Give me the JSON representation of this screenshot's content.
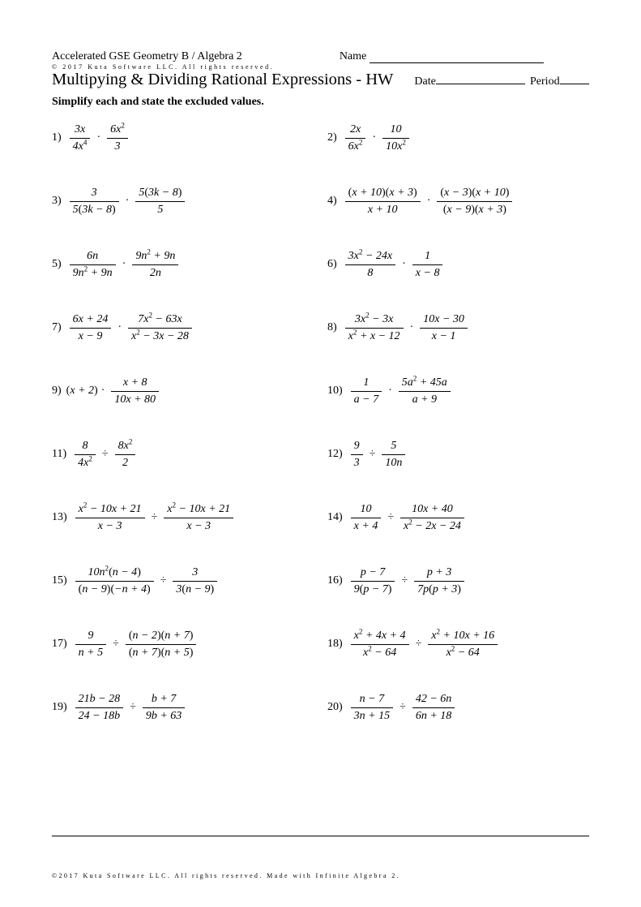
{
  "header": {
    "course": "Accelerated GSE Geometry B / Algebra 2",
    "name_label": "Name",
    "copyright_top": "© 2017 Kuta Software LLC. All rights reserved.",
    "title": "Multipying & Dividing Rational Expressions - HW",
    "date_label": "Date",
    "period_label": "Period"
  },
  "instruction": "Simplify each and state the excluded values.",
  "problems": [
    {
      "n": "1)",
      "col": "left",
      "frac1": {
        "num": "3<i>x</i>",
        "den": "4<i>x</i><sup>4</sup>"
      },
      "op": "·",
      "frac2": {
        "num": "6<i>x</i><sup>2</sup>",
        "den": "3"
      }
    },
    {
      "n": "2)",
      "col": "right",
      "frac1": {
        "num": "2<i>x</i>",
        "den": "6<i>x</i><sup>2</sup>"
      },
      "op": "·",
      "frac2": {
        "num": "10",
        "den": "10<i>x</i><sup>2</sup>"
      }
    },
    {
      "n": "3)",
      "col": "left",
      "frac1": {
        "num": "3",
        "den": "5<span class='rm'>(</span>3<i>k</i> − 8<span class='rm'>)</span>"
      },
      "op": "·",
      "frac2": {
        "num": "5<span class='rm'>(</span>3<i>k</i> − 8<span class='rm'>)</span>",
        "den": "5"
      }
    },
    {
      "n": "4)",
      "col": "right",
      "frac1": {
        "num": "<span class='rm'>(</span><i>x</i> + 10<span class='rm'>)(</span><i>x</i> + 3<span class='rm'>)</span>",
        "den": "<i>x</i> + 10"
      },
      "op": "·",
      "frac2": {
        "num": "<span class='rm'>(</span><i>x</i> − 3<span class='rm'>)(</span><i>x</i> + 10<span class='rm'>)</span>",
        "den": "<span class='rm'>(</span><i>x</i> − 9<span class='rm'>)(</span><i>x</i> + 3<span class='rm'>)</span>"
      }
    },
    {
      "n": "5)",
      "col": "left",
      "frac1": {
        "num": "6<i>n</i>",
        "den": "9<i>n</i><sup>2</sup> + 9<i>n</i>"
      },
      "op": "·",
      "frac2": {
        "num": "9<i>n</i><sup>2</sup> + 9<i>n</i>",
        "den": "2<i>n</i>"
      }
    },
    {
      "n": "6)",
      "col": "right",
      "frac1": {
        "num": "3<i>x</i><sup>2</sup> − 24<i>x</i>",
        "den": "8"
      },
      "op": "·",
      "frac2": {
        "num": "1",
        "den": "<i>x</i> − 8"
      }
    },
    {
      "n": "7)",
      "col": "left",
      "frac1": {
        "num": "6<i>x</i> + 24",
        "den": "<i>x</i> − 9"
      },
      "op": "·",
      "frac2": {
        "num": "7<i>x</i><sup>2</sup> − 63<i>x</i>",
        "den": "<i>x</i><sup>2</sup> − 3<i>x</i> − 28"
      }
    },
    {
      "n": "8)",
      "col": "right",
      "frac1": {
        "num": "3<i>x</i><sup>2</sup> − 3<i>x</i>",
        "den": "<i>x</i><sup>2</sup> + <i>x</i> − 12"
      },
      "op": "·",
      "frac2": {
        "num": "10<i>x</i> − 30",
        "den": "<i>x</i> − 1"
      }
    },
    {
      "n": "9)",
      "col": "left",
      "pre": "<span class='rm'>(</span><i>x</i> + 2<span class='rm'>)</span>",
      "op": "·",
      "frac2": {
        "num": "<i>x</i> + 8",
        "den": "10<i>x</i> + 80"
      }
    },
    {
      "n": "10)",
      "col": "right",
      "frac1": {
        "num": "1",
        "den": "<i>a</i> − 7"
      },
      "op": "·",
      "frac2": {
        "num": "5<i>a</i><sup>2</sup> + 45<i>a</i>",
        "den": "<i>a</i> + 9"
      }
    },
    {
      "n": "11)",
      "col": "left",
      "frac1": {
        "num": "8",
        "den": "4<i>x</i><sup>2</sup>"
      },
      "op": "÷",
      "frac2": {
        "num": "8<i>x</i><sup>2</sup>",
        "den": "2"
      }
    },
    {
      "n": "12)",
      "col": "right",
      "frac1": {
        "num": "9",
        "den": "3"
      },
      "op": "÷",
      "frac2": {
        "num": "5",
        "den": "10<i>n</i>"
      }
    },
    {
      "n": "13)",
      "col": "left",
      "frac1": {
        "num": "<i>x</i><sup>2</sup> − 10<i>x</i> + 21",
        "den": "<i>x</i> − 3"
      },
      "op": "÷",
      "frac2": {
        "num": "<i>x</i><sup>2</sup> − 10<i>x</i> + 21",
        "den": "<i>x</i> − 3"
      }
    },
    {
      "n": "14)",
      "col": "right",
      "frac1": {
        "num": "10",
        "den": "<i>x</i> + 4"
      },
      "op": "÷",
      "frac2": {
        "num": "10<i>x</i> + 40",
        "den": "<i>x</i><sup>2</sup> − 2<i>x</i> − 24"
      }
    },
    {
      "n": "15)",
      "col": "left",
      "frac1": {
        "num": "10<i>n</i><sup>2</sup><span class='rm'>(</span><i>n</i> − 4<span class='rm'>)</span>",
        "den": "<span class='rm'>(</span><i>n</i> − 9<span class='rm'>)(</span>−<i>n</i> + 4<span class='rm'>)</span>"
      },
      "op": "÷",
      "frac2": {
        "num": "3",
        "den": "3<span class='rm'>(</span><i>n</i> − 9<span class='rm'>)</span>"
      }
    },
    {
      "n": "16)",
      "col": "right",
      "frac1": {
        "num": "<i>p</i> − 7",
        "den": "9<span class='rm'>(</span><i>p</i> − 7<span class='rm'>)</span>"
      },
      "op": "÷",
      "frac2": {
        "num": "<i>p</i> + 3",
        "den": "7<i>p</i><span class='rm'>(</span><i>p</i> + 3<span class='rm'>)</span>"
      }
    },
    {
      "n": "17)",
      "col": "left",
      "frac1": {
        "num": "9",
        "den": "<i>n</i> + 5"
      },
      "op": "÷",
      "frac2": {
        "num": "<span class='rm'>(</span><i>n</i> − 2<span class='rm'>)(</span><i>n</i> + 7<span class='rm'>)</span>",
        "den": "<span class='rm'>(</span><i>n</i> + 7<span class='rm'>)(</span><i>n</i> + 5<span class='rm'>)</span>"
      }
    },
    {
      "n": "18)",
      "col": "right",
      "frac1": {
        "num": "<i>x</i><sup>2</sup> + 4<i>x</i> + 4",
        "den": "<i>x</i><sup>2</sup> − 64"
      },
      "op": "÷",
      "frac2": {
        "num": "<i>x</i><sup>2</sup> + 10<i>x</i> + 16",
        "den": "<i>x</i><sup>2</sup> − 64"
      }
    },
    {
      "n": "19)",
      "col": "left",
      "frac1": {
        "num": "21<i>b</i> − 28",
        "den": "24 − 18<i>b</i>"
      },
      "op": "÷",
      "frac2": {
        "num": "<i>b</i> + 7",
        "den": "9<i>b</i> + 63"
      }
    },
    {
      "n": "20)",
      "col": "right",
      "frac1": {
        "num": "<i>n</i> − 7",
        "den": "3<i>n</i> + 15"
      },
      "op": "÷",
      "frac2": {
        "num": "42 − 6<i>n</i>",
        "den": "6<i>n</i> + 18"
      }
    }
  ],
  "footer": "©2017 Kuta Software LLC. All rights reserved. Made with Infinite Algebra 2."
}
